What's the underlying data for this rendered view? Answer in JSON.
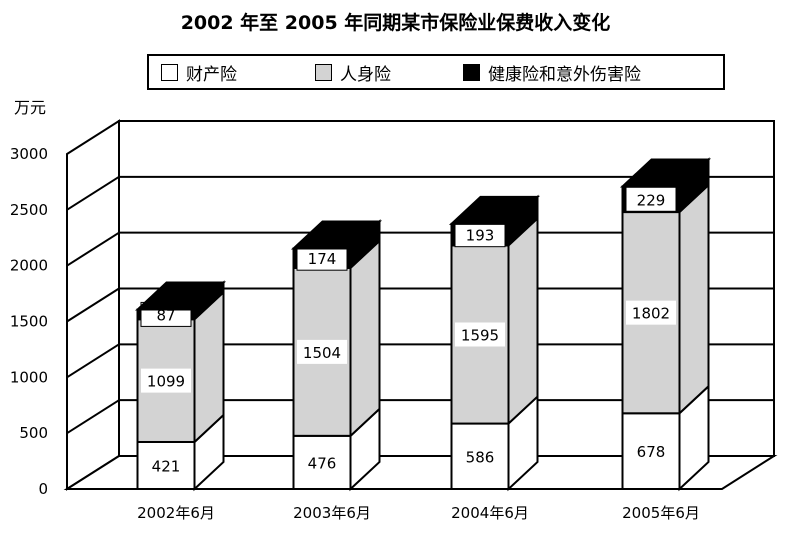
{
  "chart_data": {
    "type": "bar",
    "stacked": true,
    "three_d": true,
    "title": "2002 年至 2005 年同期某市保险业保费收入变化",
    "ylabel": "万元",
    "xlabel": "",
    "ylim": [
      0,
      3000
    ],
    "yticks": [
      0,
      500,
      1000,
      1500,
      2000,
      2500,
      3000
    ],
    "grid": true,
    "legend_position": "top",
    "categories": [
      "2002年6月",
      "2003年6月",
      "2004年6月",
      "2005年6月"
    ],
    "series": [
      {
        "name": "财产险",
        "values": [
          421,
          476,
          586,
          678
        ],
        "color": "#ffffff"
      },
      {
        "name": "人身险",
        "values": [
          1099,
          1504,
          1595,
          1802
        ],
        "color": "#d3d3d3"
      },
      {
        "name": "健康险和意外伤害险",
        "values": [
          87,
          174,
          193,
          229
        ],
        "color": "#000000"
      }
    ]
  }
}
